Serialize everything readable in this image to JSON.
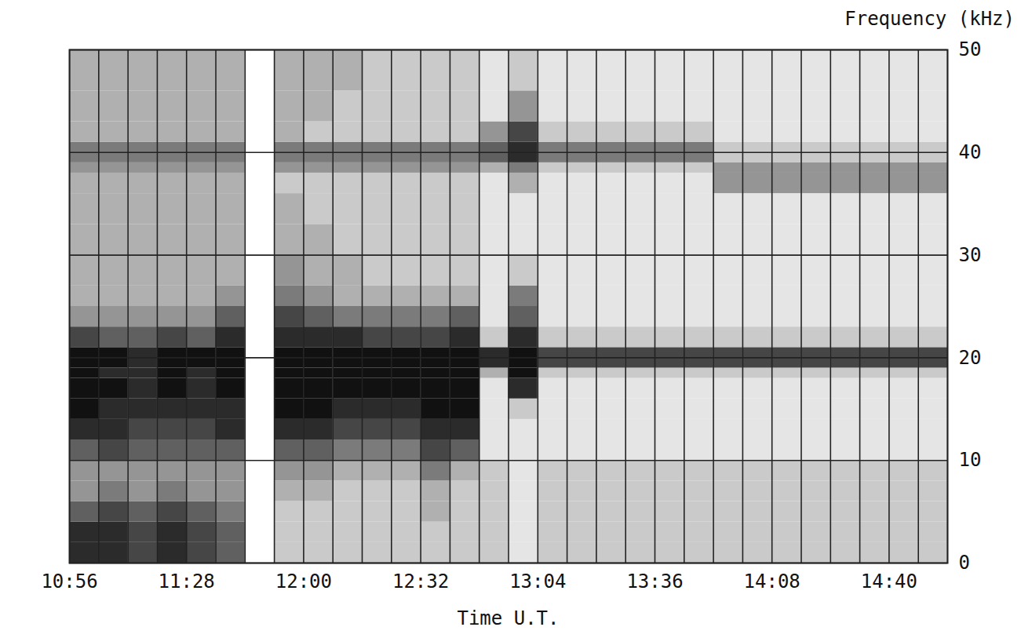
{
  "chart_data": {
    "type": "heatmap",
    "y_label": "Frequency (kHz)",
    "x_label": "Time U.T.",
    "xlim": [
      656,
      896
    ],
    "xticks": [
      {
        "value": 656,
        "label": "10:56"
      },
      {
        "value": 688,
        "label": "11:28"
      },
      {
        "value": 720,
        "label": "12:00"
      },
      {
        "value": 752,
        "label": "12:32"
      },
      {
        "value": 784,
        "label": "13:04"
      },
      {
        "value": 816,
        "label": "13:36"
      },
      {
        "value": 848,
        "label": "14:08"
      },
      {
        "value": 880,
        "label": "14:40"
      }
    ],
    "xgrid": [
      656,
      664,
      672,
      680,
      688,
      696,
      704,
      712,
      720,
      728,
      736,
      744,
      752,
      760,
      768,
      776,
      784,
      792,
      800,
      808,
      816,
      824,
      832,
      840,
      848,
      856,
      864,
      872,
      880,
      888,
      896
    ],
    "ylim": [
      0,
      50
    ],
    "yticks": [
      0,
      10,
      20,
      30,
      40,
      50
    ],
    "grid": true,
    "color": "#111111",
    "zlim": [
      0,
      9
    ],
    "time_edges": [
      656,
      664,
      672,
      680,
      688,
      696,
      704,
      712,
      720,
      728,
      736,
      744,
      752,
      760,
      768,
      776,
      784,
      792,
      800,
      808,
      816,
      824,
      832,
      840,
      848,
      856,
      864,
      872,
      880,
      888,
      896
    ],
    "frequency_edges": [
      0,
      2,
      4,
      6,
      8,
      10,
      12,
      14,
      16,
      18,
      19,
      21,
      23,
      25,
      27,
      30,
      33,
      36,
      38,
      39,
      41,
      43,
      46,
      50
    ],
    "intensity": [
      [
        8,
        8,
        7,
        8,
        7,
        6,
        null,
        2,
        2,
        2,
        2,
        2,
        2,
        2,
        2,
        1,
        2,
        2,
        2,
        2,
        2,
        2,
        2,
        2,
        2,
        2,
        2,
        2,
        2,
        2
      ],
      [
        8,
        8,
        7,
        8,
        7,
        6,
        null,
        2,
        2,
        2,
        2,
        2,
        2,
        2,
        2,
        1,
        2,
        2,
        2,
        2,
        2,
        2,
        2,
        2,
        2,
        2,
        2,
        2,
        2,
        2
      ],
      [
        6,
        7,
        6,
        7,
        6,
        5,
        null,
        2,
        2,
        2,
        2,
        2,
        3,
        2,
        2,
        1,
        2,
        2,
        2,
        2,
        2,
        2,
        2,
        2,
        2,
        2,
        2,
        2,
        2,
        2
      ],
      [
        4,
        5,
        4,
        5,
        4,
        4,
        null,
        3,
        3,
        2,
        2,
        2,
        3,
        2,
        2,
        1,
        2,
        2,
        2,
        2,
        2,
        2,
        2,
        2,
        2,
        2,
        2,
        2,
        2,
        2
      ],
      [
        4,
        4,
        4,
        4,
        4,
        4,
        null,
        4,
        4,
        3,
        3,
        3,
        5,
        3,
        2,
        1,
        2,
        2,
        2,
        2,
        2,
        2,
        2,
        2,
        2,
        2,
        2,
        2,
        2,
        2
      ],
      [
        6,
        7,
        6,
        6,
        6,
        6,
        null,
        6,
        6,
        5,
        5,
        5,
        7,
        6,
        1,
        1,
        1,
        1,
        1,
        1,
        1,
        1,
        1,
        1,
        1,
        1,
        1,
        1,
        1,
        1
      ],
      [
        8,
        8,
        7,
        7,
        7,
        8,
        null,
        8,
        8,
        7,
        7,
        7,
        8,
        8,
        1,
        1,
        1,
        1,
        1,
        1,
        1,
        1,
        1,
        1,
        1,
        1,
        1,
        1,
        1,
        1
      ],
      [
        9,
        8,
        8,
        8,
        8,
        8,
        null,
        9,
        9,
        8,
        8,
        8,
        9,
        9,
        1,
        2,
        1,
        1,
        1,
        1,
        1,
        1,
        1,
        1,
        1,
        1,
        1,
        1,
        1,
        1
      ],
      [
        9,
        9,
        8,
        9,
        8,
        9,
        null,
        9,
        9,
        9,
        9,
        9,
        9,
        9,
        1,
        8,
        1,
        1,
        1,
        1,
        1,
        1,
        1,
        1,
        1,
        1,
        1,
        1,
        1,
        1
      ],
      [
        9,
        8,
        8,
        9,
        8,
        9,
        null,
        9,
        9,
        9,
        9,
        9,
        9,
        9,
        3,
        9,
        2,
        2,
        2,
        2,
        2,
        2,
        2,
        2,
        2,
        2,
        2,
        2,
        2,
        2
      ],
      [
        9,
        9,
        8,
        9,
        9,
        9,
        null,
        9,
        9,
        9,
        9,
        9,
        9,
        9,
        8,
        9,
        7,
        7,
        7,
        7,
        7,
        7,
        7,
        7,
        7,
        7,
        7,
        7,
        7,
        7
      ],
      [
        7,
        6,
        6,
        7,
        6,
        8,
        null,
        8,
        8,
        8,
        7,
        7,
        7,
        8,
        2,
        8,
        2,
        2,
        2,
        2,
        2,
        2,
        2,
        2,
        2,
        2,
        2,
        2,
        2,
        2
      ],
      [
        4,
        4,
        4,
        4,
        4,
        6,
        null,
        7,
        6,
        5,
        5,
        5,
        5,
        6,
        1,
        6,
        1,
        1,
        1,
        1,
        1,
        1,
        1,
        1,
        1,
        1,
        1,
        1,
        1,
        1
      ],
      [
        3,
        3,
        3,
        3,
        3,
        4,
        null,
        5,
        4,
        3,
        3,
        3,
        3,
        3,
        1,
        5,
        1,
        1,
        1,
        1,
        1,
        1,
        1,
        1,
        1,
        1,
        1,
        1,
        1,
        1
      ],
      [
        3,
        3,
        3,
        3,
        3,
        3,
        null,
        4,
        3,
        3,
        2,
        2,
        2,
        2,
        1,
        2,
        1,
        1,
        1,
        1,
        1,
        1,
        1,
        1,
        1,
        1,
        1,
        1,
        1,
        1
      ],
      [
        3,
        3,
        3,
        3,
        3,
        3,
        null,
        3,
        3,
        2,
        2,
        2,
        2,
        2,
        1,
        1,
        1,
        1,
        1,
        1,
        1,
        1,
        1,
        1,
        1,
        1,
        1,
        1,
        1,
        1
      ],
      [
        3,
        3,
        3,
        3,
        3,
        3,
        null,
        3,
        2,
        2,
        2,
        2,
        2,
        2,
        1,
        1,
        1,
        1,
        1,
        1,
        1,
        1,
        1,
        1,
        1,
        1,
        1,
        1,
        1,
        1
      ],
      [
        3,
        3,
        3,
        3,
        3,
        3,
        null,
        2,
        2,
        2,
        2,
        2,
        2,
        2,
        1,
        3,
        1,
        1,
        1,
        1,
        1,
        1,
        4,
        4,
        4,
        4,
        4,
        4,
        4,
        4
      ],
      [
        4,
        4,
        4,
        4,
        4,
        4,
        null,
        4,
        4,
        4,
        4,
        4,
        4,
        4,
        3,
        5,
        2,
        2,
        2,
        2,
        2,
        2,
        4,
        4,
        4,
        4,
        4,
        4,
        4,
        4
      ],
      [
        5,
        5,
        5,
        5,
        5,
        5,
        null,
        5,
        5,
        5,
        5,
        5,
        5,
        5,
        6,
        8,
        5,
        5,
        5,
        5,
        5,
        5,
        2,
        2,
        2,
        2,
        2,
        2,
        2,
        2
      ],
      [
        3,
        3,
        3,
        3,
        3,
        3,
        null,
        3,
        2,
        2,
        2,
        2,
        2,
        2,
        4,
        7,
        2,
        2,
        2,
        2,
        2,
        2,
        1,
        1,
        1,
        1,
        1,
        1,
        1,
        1
      ],
      [
        3,
        3,
        3,
        3,
        3,
        3,
        null,
        3,
        3,
        2,
        2,
        2,
        2,
        2,
        1,
        4,
        1,
        1,
        1,
        1,
        1,
        1,
        1,
        1,
        1,
        1,
        1,
        1,
        1,
        1
      ],
      [
        3,
        3,
        3,
        3,
        3,
        3,
        null,
        3,
        3,
        3,
        2,
        2,
        2,
        2,
        1,
        2,
        1,
        1,
        1,
        1,
        1,
        1,
        1,
        1,
        1,
        1,
        1,
        1,
        1,
        1
      ]
    ]
  }
}
